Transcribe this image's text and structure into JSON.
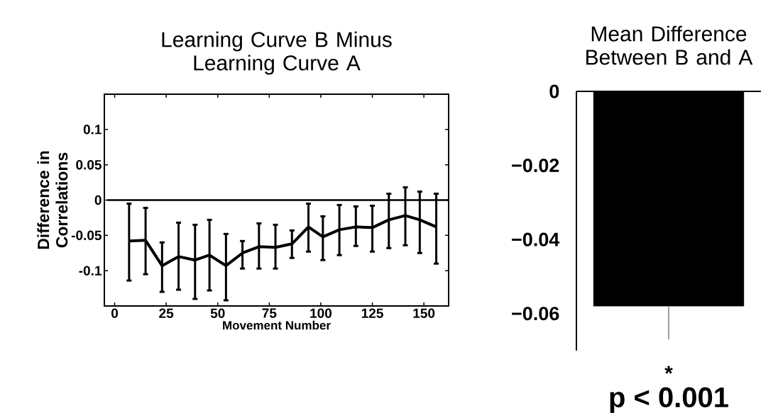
{
  "chart_data": [
    {
      "type": "line",
      "title": "Learning Curve B Minus Learning Curve A",
      "xlabel": "Movement Number",
      "ylabel": "Difference in Correlations",
      "color": "#000000",
      "marker": "none",
      "x": [
        7,
        15,
        23,
        31,
        39,
        46,
        54,
        62,
        70,
        78,
        86,
        94,
        101,
        109,
        117,
        125,
        133,
        141,
        148,
        156
      ],
      "values": [
        -0.058,
        -0.057,
        -0.093,
        -0.08,
        -0.085,
        -0.078,
        -0.093,
        -0.075,
        -0.066,
        -0.067,
        -0.062,
        -0.038,
        -0.052,
        -0.042,
        -0.038,
        -0.039,
        -0.028,
        -0.022,
        -0.028,
        -0.038
      ],
      "errors": [
        [
          -0.114,
          -0.005
        ],
        [
          -0.105,
          -0.011
        ],
        [
          -0.13,
          -0.06
        ],
        [
          -0.127,
          -0.032
        ],
        [
          -0.14,
          -0.035
        ],
        [
          -0.128,
          -0.028
        ],
        [
          -0.142,
          -0.048
        ],
        [
          -0.097,
          -0.058
        ],
        [
          -0.097,
          -0.033
        ],
        [
          -0.097,
          -0.035
        ],
        [
          -0.082,
          -0.043
        ],
        [
          -0.073,
          -0.005
        ],
        [
          -0.085,
          -0.023
        ],
        [
          -0.078,
          -0.007
        ],
        [
          -0.065,
          -0.009
        ],
        [
          -0.073,
          -0.008
        ],
        [
          -0.068,
          0.009
        ],
        [
          -0.064,
          0.018
        ],
        [
          -0.075,
          0.012
        ],
        [
          -0.09,
          0.009
        ]
      ],
      "xlim": [
        -5,
        162
      ],
      "ylim": [
        -0.15,
        0.15
      ],
      "xticks": [
        0,
        25,
        50,
        75,
        100,
        125,
        150
      ],
      "yticks": [
        -0.1,
        -0.05,
        0,
        0.05,
        0.1
      ],
      "ref_lines": [
        {
          "axis": "y",
          "value": 0
        }
      ]
    },
    {
      "type": "bar",
      "title": "Mean Difference Between B and A",
      "categories": [
        null
      ],
      "values": [
        -0.058
      ],
      "color": "#000000",
      "errors": [
        [
          -0.067,
          -0.058
        ]
      ],
      "ylim": [
        -0.07,
        0
      ],
      "yticks": [
        {
          "value": -0.06,
          "label": "−0.06"
        },
        {
          "value": -0.04,
          "label": "−0.04"
        },
        {
          "value": -0.02,
          "label": "−0.02"
        },
        0
      ],
      "annotations": [
        "*",
        "p < 0.001"
      ]
    }
  ]
}
